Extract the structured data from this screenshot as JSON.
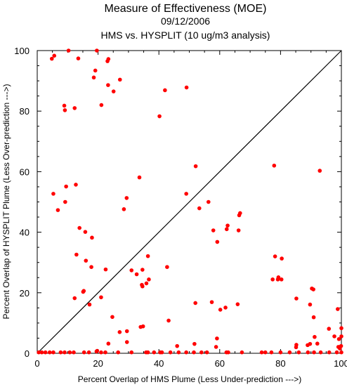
{
  "colors": {
    "points": "#ff0000",
    "axes": "#000000",
    "background": "#ffffff"
  },
  "chart_data": {
    "type": "scatter",
    "title": "Measure of Effectiveness (MOE)",
    "subtitle": "09/12/2006",
    "subtitle2": "HMS vs. HYSPLIT  (10 ug/m3 analysis)",
    "xlabel": "Percent Overlap of HMS Plume (Less Under-prediction --->)",
    "ylabel": "Percent Overlap of HYSPLIT Plume (Less Over-prediction --->)",
    "xlim": [
      0,
      100
    ],
    "ylim": [
      0,
      100
    ],
    "xticks": [
      "0",
      "20",
      "40",
      "60",
      "80",
      "100"
    ],
    "yticks": [
      "0",
      "20",
      "40",
      "60",
      "80",
      "100"
    ],
    "grid": false,
    "diagonal_line": true,
    "points": [
      [
        4.8,
        97.3
      ],
      [
        5.6,
        98.3
      ],
      [
        10.3,
        100.0
      ],
      [
        13.5,
        97.4
      ],
      [
        19.6,
        100.0
      ],
      [
        23.1,
        96.5
      ],
      [
        23.4,
        97.2
      ],
      [
        18.6,
        91.1
      ],
      [
        19.1,
        93.4
      ],
      [
        27.2,
        90.4
      ],
      [
        23.3,
        88.6
      ],
      [
        25.1,
        86.5
      ],
      [
        42.0,
        86.9
      ],
      [
        49.1,
        87.8
      ],
      [
        8.9,
        81.8
      ],
      [
        9.1,
        80.3
      ],
      [
        12.3,
        81.0
      ],
      [
        21.1,
        82.0
      ],
      [
        40.2,
        78.3
      ],
      [
        52.1,
        61.8
      ],
      [
        77.9,
        62.0
      ],
      [
        92.9,
        60.3
      ],
      [
        33.6,
        58.1
      ],
      [
        5.3,
        52.7
      ],
      [
        9.5,
        55.1
      ],
      [
        12.7,
        55.7
      ],
      [
        29.4,
        51.3
      ],
      [
        49.0,
        52.7
      ],
      [
        6.8,
        47.3
      ],
      [
        9.2,
        50.0
      ],
      [
        28.5,
        47.6
      ],
      [
        53.3,
        47.9
      ],
      [
        56.3,
        50.0
      ],
      [
        13.9,
        41.4
      ],
      [
        15.8,
        40.1
      ],
      [
        18.0,
        38.2
      ],
      [
        57.9,
        40.6
      ],
      [
        59.2,
        36.8
      ],
      [
        62.3,
        41.0
      ],
      [
        62.6,
        42.2
      ],
      [
        66.2,
        40.6
      ],
      [
        66.4,
        45.6
      ],
      [
        66.7,
        46.3
      ],
      [
        12.9,
        32.6
      ],
      [
        16.0,
        30.6
      ],
      [
        22.5,
        27.7
      ],
      [
        17.8,
        28.5
      ],
      [
        31.0,
        27.4
      ],
      [
        32.7,
        26.1
      ],
      [
        34.6,
        27.6
      ],
      [
        36.4,
        32.1
      ],
      [
        42.7,
        28.5
      ],
      [
        78.2,
        32.0
      ],
      [
        80.4,
        31.3
      ],
      [
        77.4,
        24.4
      ],
      [
        79.1,
        24.4
      ],
      [
        80.3,
        24.4
      ],
      [
        79.3,
        25.1
      ],
      [
        34.4,
        22.6
      ],
      [
        34.6,
        22.1
      ],
      [
        35.9,
        23.1
      ],
      [
        36.7,
        24.4
      ],
      [
        15.1,
        20.3
      ],
      [
        15.3,
        20.6
      ],
      [
        12.3,
        18.2
      ],
      [
        21.0,
        18.5
      ],
      [
        17.2,
        16.1
      ],
      [
        52.0,
        16.6
      ],
      [
        57.4,
        16.9
      ],
      [
        60.2,
        14.4
      ],
      [
        61.9,
        15.1
      ],
      [
        65.9,
        16.2
      ],
      [
        85.2,
        18.1
      ],
      [
        89.7,
        16.1
      ],
      [
        90.3,
        21.4
      ],
      [
        90.8,
        21.1
      ],
      [
        98.8,
        14.6
      ],
      [
        90.9,
        11.9
      ],
      [
        24.7,
        12.0
      ],
      [
        34.0,
        8.7
      ],
      [
        34.8,
        8.9
      ],
      [
        43.2,
        10.8
      ],
      [
        29.5,
        7.3
      ],
      [
        27.1,
        7.0
      ],
      [
        23.4,
        3.2
      ],
      [
        29.5,
        3.7
      ],
      [
        46.0,
        2.4
      ],
      [
        51.7,
        3.1
      ],
      [
        58.8,
        2.1
      ],
      [
        59.1,
        4.9
      ],
      [
        85.1,
        2.0
      ],
      [
        85.2,
        2.8
      ],
      [
        88.9,
        2.7
      ],
      [
        89.7,
        3.1
      ],
      [
        92.1,
        3.2
      ],
      [
        91.2,
        5.4
      ],
      [
        95.9,
        8.1
      ],
      [
        97.7,
        5.6
      ],
      [
        99.2,
        4.7
      ],
      [
        100.0,
        8.3
      ],
      [
        100.0,
        5.6
      ],
      [
        99.9,
        2.4
      ],
      [
        99.5,
        1.6
      ],
      [
        99.0,
        2.1
      ],
      [
        100.0,
        0.3
      ],
      [
        98.5,
        0.3
      ],
      [
        96.0,
        0.3
      ],
      [
        93.2,
        0.3
      ],
      [
        91.0,
        0.3
      ],
      [
        89.0,
        0.3
      ],
      [
        86.0,
        0.3
      ],
      [
        83.0,
        0.3
      ],
      [
        80.0,
        0.3
      ],
      [
        77.0,
        0.3
      ],
      [
        75.0,
        0.3
      ],
      [
        73.8,
        0.3
      ],
      [
        67.3,
        0.3
      ],
      [
        62.8,
        0.3
      ],
      [
        62.2,
        0.3
      ],
      [
        55.8,
        0.3
      ],
      [
        54.0,
        0.3
      ],
      [
        51.5,
        0.3
      ],
      [
        49.0,
        0.3
      ],
      [
        46.5,
        0.3
      ],
      [
        43.8,
        0.3
      ],
      [
        41.0,
        0.3
      ],
      [
        40.4,
        0.3
      ],
      [
        38.4,
        0.3
      ],
      [
        36.4,
        0.3
      ],
      [
        35.8,
        0.3
      ],
      [
        31.0,
        0.3
      ],
      [
        26.6,
        0.3
      ],
      [
        22.4,
        0.3
      ],
      [
        21.0,
        0.3
      ],
      [
        19.7,
        0.8
      ],
      [
        19.5,
        0.6
      ],
      [
        17.0,
        0.3
      ],
      [
        15.4,
        0.3
      ],
      [
        12.0,
        0.3
      ],
      [
        10.7,
        0.3
      ],
      [
        9.0,
        0.3
      ],
      [
        7.7,
        0.3
      ],
      [
        5.3,
        0.3
      ],
      [
        4.1,
        0.3
      ],
      [
        2.7,
        0.3
      ],
      [
        1.5,
        0.3
      ],
      [
        0.5,
        0.3
      ]
    ]
  }
}
